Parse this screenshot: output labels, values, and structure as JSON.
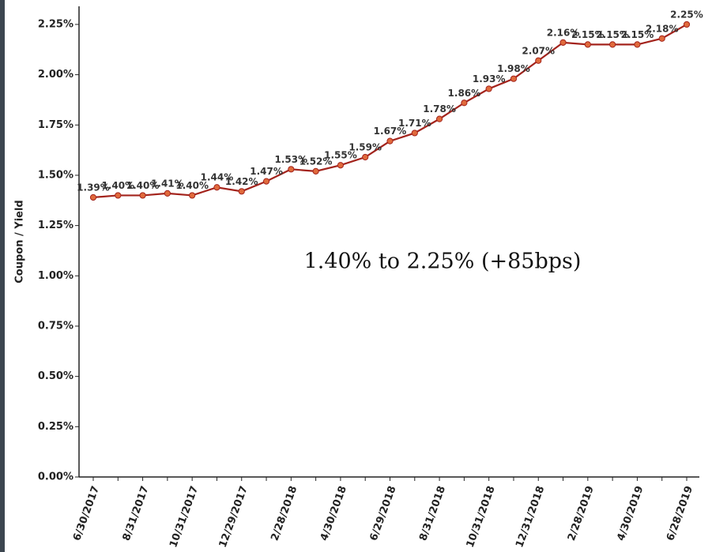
{
  "chart_data": {
    "type": "line",
    "y_label": "Coupon / Yield",
    "annotation": "1.40% to 2.25% (+85bps)",
    "categories": [
      "6/30/2017",
      null,
      "8/31/2017",
      null,
      "10/31/2017",
      null,
      "12/29/2017",
      null,
      "2/28/2018",
      null,
      "4/30/2018",
      null,
      "6/29/2018",
      null,
      "8/31/2018",
      null,
      "10/31/2018",
      null,
      "12/31/2018",
      null,
      "2/28/2019",
      null,
      "4/30/2019",
      null,
      "6/28/2019"
    ],
    "series": [
      {
        "color": "#a3231c",
        "marker_color": "#e06a3c",
        "values": [
          1.39,
          1.4,
          1.4,
          1.41,
          1.4,
          1.44,
          1.42,
          1.47,
          1.53,
          1.52,
          1.55,
          1.59,
          1.67,
          1.71,
          1.78,
          1.86,
          1.93,
          1.98,
          2.07,
          2.16,
          2.15,
          2.15,
          2.15,
          2.18,
          2.25
        ],
        "value_labels": [
          "1.39%",
          "1.40%",
          "1.40%",
          "1.41%",
          "1.40%",
          "1.44%",
          "1.42%",
          "1.47%",
          "1.53%",
          "1.52%",
          "1.55%",
          "1.59%",
          "1.67%",
          "1.71%",
          "1.78%",
          "1.86%",
          "1.93%",
          "1.98%",
          "2.07%",
          "2.16%",
          "2.15%",
          "2.15%",
          "2.15%",
          "2.18%",
          "2.25%"
        ]
      }
    ],
    "ylim": [
      0,
      2.34
    ],
    "yticks": [
      {
        "value": 0,
        "label": "0.00%"
      },
      {
        "value": 0.25,
        "label": "0.25%"
      },
      {
        "value": 0.5,
        "label": "0.50%"
      },
      {
        "value": 0.75,
        "label": "0.75%"
      },
      {
        "value": 1,
        "label": "1.00%"
      },
      {
        "value": 1.25,
        "label": "1.25%"
      },
      {
        "value": 1.5,
        "label": "1.50%"
      },
      {
        "value": 1.75,
        "label": "1.75%"
      },
      {
        "value": 2,
        "label": "2.00%"
      },
      {
        "value": 2.25,
        "label": "2.25%"
      }
    ]
  }
}
